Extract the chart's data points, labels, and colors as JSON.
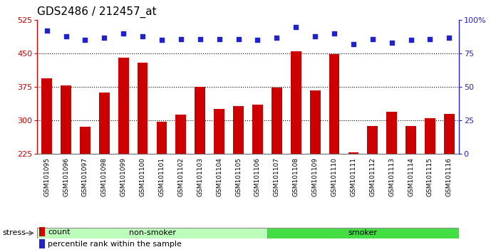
{
  "title": "GDS2486 / 212457_at",
  "samples": [
    "GSM101095",
    "GSM101096",
    "GSM101097",
    "GSM101098",
    "GSM101099",
    "GSM101100",
    "GSM101101",
    "GSM101102",
    "GSM101103",
    "GSM101104",
    "GSM101105",
    "GSM101106",
    "GSM101107",
    "GSM101108",
    "GSM101109",
    "GSM101110",
    "GSM101111",
    "GSM101112",
    "GSM101113",
    "GSM101114",
    "GSM101115",
    "GSM101116"
  ],
  "counts": [
    395,
    378,
    285,
    362,
    440,
    430,
    297,
    313,
    376,
    325,
    332,
    335,
    374,
    455,
    367,
    448,
    228,
    288,
    320,
    287,
    305,
    315
  ],
  "percentile_ranks": [
    92,
    88,
    85,
    87,
    90,
    88,
    85,
    86,
    86,
    86,
    86,
    85,
    87,
    95,
    88,
    90,
    82,
    86,
    83,
    85,
    86,
    87
  ],
  "non_smoker_count": 12,
  "smoker_count": 10,
  "ylim_left": [
    225,
    525
  ],
  "ylim_right": [
    0,
    100
  ],
  "yticks_left": [
    225,
    300,
    375,
    450,
    525
  ],
  "yticks_right": [
    0,
    25,
    50,
    75,
    100
  ],
  "bar_color": "#cc0000",
  "dot_color": "#2222cc",
  "non_smoker_color": "#bbffbb",
  "smoker_color": "#44dd44",
  "tick_bg_color": "#cccccc",
  "label_count": "count",
  "label_percentile": "percentile rank within the sample",
  "stress_label": "stress",
  "non_smoker_label": "non-smoker",
  "smoker_label": "smoker",
  "dotted_lines": [
    300,
    375,
    450
  ],
  "title_fontsize": 11,
  "axis_fontsize": 8,
  "tick_fontsize": 6.5
}
